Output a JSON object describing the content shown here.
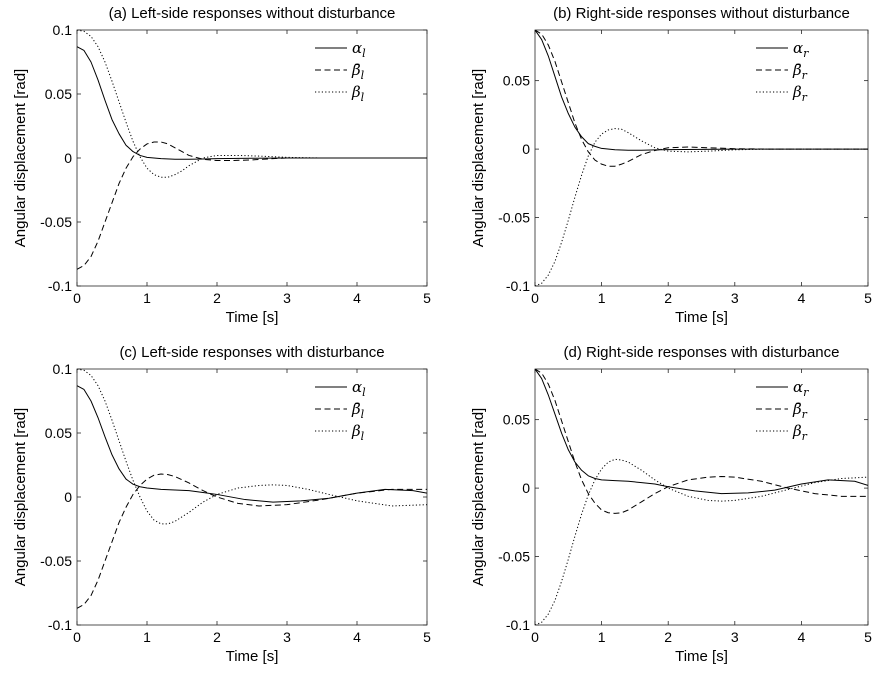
{
  "figure": {
    "line_styles": {
      "alpha": {
        "color": "#000000",
        "dash": "none"
      },
      "beta_bar": {
        "color": "#000000",
        "dash": "dashed"
      },
      "beta": {
        "color": "#000000",
        "dash": "dotted"
      }
    }
  },
  "chart_data": [
    {
      "type": "line",
      "title": "(a) Left-side responses without disturbance",
      "xlabel": "Time [s]",
      "ylabel": "Angular displacement [rad]",
      "xlim": [
        0,
        5
      ],
      "ylim": [
        -0.1,
        0.1
      ],
      "xticks": [
        0,
        1,
        2,
        3,
        4,
        5
      ],
      "yticks": [
        -0.1,
        -0.05,
        0,
        0.05,
        0.1
      ],
      "xtick_labels": [
        "0",
        "1",
        "2",
        "3",
        "4",
        "5"
      ],
      "ytick_labels": [
        "-0.1",
        "-0.05",
        "0",
        "0.05",
        "0.1"
      ],
      "legend_position": "top-right",
      "grid": false,
      "series": [
        {
          "name": "αl",
          "style": "solid",
          "x": [
            0,
            0.1,
            0.2,
            0.3,
            0.4,
            0.5,
            0.6,
            0.7,
            0.8,
            0.9,
            1.0,
            1.2,
            1.4,
            1.6,
            1.8,
            2.0,
            2.5,
            3.0,
            3.5,
            4.0,
            4.5,
            5.0
          ],
          "y": [
            0.087,
            0.084,
            0.075,
            0.061,
            0.045,
            0.03,
            0.019,
            0.01,
            0.005,
            0.002,
            0.0005,
            -0.0005,
            -0.001,
            -0.001,
            -0.0008,
            -0.0005,
            -0.0002,
            0,
            0,
            0,
            0,
            0
          ]
        },
        {
          "name": "β̄l",
          "style": "dashed",
          "x": [
            0,
            0.1,
            0.2,
            0.3,
            0.4,
            0.5,
            0.6,
            0.7,
            0.8,
            0.9,
            1.0,
            1.1,
            1.2,
            1.3,
            1.4,
            1.5,
            1.6,
            1.8,
            2.0,
            2.2,
            2.5,
            2.8,
            3.0,
            3.5,
            4.0,
            4.5,
            5.0
          ],
          "y": [
            -0.087,
            -0.084,
            -0.077,
            -0.065,
            -0.05,
            -0.035,
            -0.02,
            -0.008,
            0.001,
            0.007,
            0.011,
            0.0125,
            0.0125,
            0.011,
            0.008,
            0.005,
            0.002,
            -0.001,
            -0.002,
            -0.002,
            -0.0015,
            -0.0005,
            0,
            0,
            0,
            0,
            0
          ]
        },
        {
          "name": "βl",
          "style": "dotted",
          "x": [
            0,
            0.1,
            0.2,
            0.3,
            0.4,
            0.5,
            0.6,
            0.7,
            0.8,
            0.9,
            1.0,
            1.1,
            1.2,
            1.3,
            1.4,
            1.5,
            1.6,
            1.8,
            2.0,
            2.3,
            2.6,
            3.0,
            3.5,
            4.0,
            4.5,
            5.0
          ],
          "y": [
            0.1,
            0.099,
            0.095,
            0.087,
            0.075,
            0.06,
            0.044,
            0.028,
            0.013,
            0.001,
            -0.008,
            -0.013,
            -0.015,
            -0.015,
            -0.013,
            -0.01,
            -0.006,
            0.0,
            0.002,
            0.002,
            0.0015,
            0.0005,
            0,
            0,
            0,
            0
          ]
        }
      ]
    },
    {
      "type": "line",
      "title": "(b) Right-side responses without disturbance",
      "xlabel": "Time [s]",
      "ylabel": "Angular displacement [rad]",
      "xlim": [
        0,
        5
      ],
      "ylim": [
        -0.1,
        0.087
      ],
      "xticks": [
        0,
        1,
        2,
        3,
        4,
        5
      ],
      "yticks": [
        -0.1,
        -0.05,
        0,
        0.05
      ],
      "xtick_labels": [
        "0",
        "1",
        "2",
        "3",
        "4",
        "5"
      ],
      "ytick_labels": [
        "-0.1",
        "-0.05",
        "0",
        "0.05"
      ],
      "legend_position": "top-right",
      "grid": false,
      "series": [
        {
          "name": "αr",
          "style": "solid",
          "x": [
            0,
            0.1,
            0.2,
            0.3,
            0.4,
            0.5,
            0.6,
            0.7,
            0.8,
            0.9,
            1.0,
            1.2,
            1.4,
            1.6,
            1.8,
            2.0,
            2.5,
            3.0,
            3.5,
            4.0,
            4.5,
            5.0
          ],
          "y": [
            0.087,
            0.08,
            0.068,
            0.053,
            0.038,
            0.026,
            0.016,
            0.009,
            0.004,
            0.002,
            0.0005,
            -0.0005,
            -0.0008,
            -0.0008,
            -0.0006,
            -0.0004,
            -0.0002,
            0,
            0,
            0,
            0,
            0
          ]
        },
        {
          "name": "β̄r",
          "style": "dashed",
          "x": [
            0,
            0.1,
            0.2,
            0.3,
            0.4,
            0.5,
            0.6,
            0.7,
            0.8,
            0.9,
            1.0,
            1.1,
            1.2,
            1.3,
            1.4,
            1.6,
            1.8,
            2.0,
            2.3,
            2.6,
            3.0,
            3.5,
            4.0,
            4.5,
            5.0
          ],
          "y": [
            0.087,
            0.084,
            0.076,
            0.064,
            0.049,
            0.034,
            0.019,
            0.007,
            -0.002,
            -0.008,
            -0.011,
            -0.0125,
            -0.0125,
            -0.011,
            -0.009,
            -0.004,
            -0.001,
            0.001,
            0.0015,
            0.001,
            0.0003,
            0,
            0,
            0,
            0
          ]
        },
        {
          "name": "βr",
          "style": "dotted",
          "x": [
            0,
            0.1,
            0.2,
            0.3,
            0.4,
            0.5,
            0.6,
            0.7,
            0.8,
            0.9,
            1.0,
            1.1,
            1.2,
            1.3,
            1.4,
            1.5,
            1.6,
            1.8,
            2.0,
            2.3,
            2.6,
            3.0,
            3.5,
            4.0,
            4.5,
            5.0
          ],
          "y": [
            -0.1,
            -0.098,
            -0.092,
            -0.082,
            -0.068,
            -0.052,
            -0.035,
            -0.019,
            -0.005,
            0.005,
            0.011,
            0.014,
            0.015,
            0.0145,
            0.012,
            0.009,
            0.006,
            0.001,
            -0.0015,
            -0.002,
            -0.0015,
            -0.0005,
            0,
            0,
            0,
            0
          ]
        }
      ]
    },
    {
      "type": "line",
      "title": "(c) Left-side responses with disturbance",
      "xlabel": "Time [s]",
      "ylabel": "Angular displacement [rad]",
      "xlim": [
        0,
        5
      ],
      "ylim": [
        -0.1,
        0.1
      ],
      "xticks": [
        0,
        1,
        2,
        3,
        4,
        5
      ],
      "yticks": [
        -0.1,
        -0.05,
        0,
        0.05,
        0.1
      ],
      "xtick_labels": [
        "0",
        "1",
        "2",
        "3",
        "4",
        "5"
      ],
      "ytick_labels": [
        "-0.1",
        "-0.05",
        "0",
        "0.05",
        "0.1"
      ],
      "legend_position": "top-right",
      "grid": false,
      "series": [
        {
          "name": "αl",
          "style": "solid",
          "x": [
            0,
            0.1,
            0.2,
            0.3,
            0.4,
            0.5,
            0.6,
            0.7,
            0.8,
            0.9,
            1.0,
            1.2,
            1.4,
            1.6,
            1.8,
            2.0,
            2.4,
            2.8,
            3.2,
            3.6,
            4.0,
            4.4,
            4.8,
            5.0
          ],
          "y": [
            0.087,
            0.084,
            0.075,
            0.062,
            0.047,
            0.033,
            0.022,
            0.014,
            0.01,
            0.008,
            0.007,
            0.006,
            0.0055,
            0.005,
            0.0035,
            0.002,
            -0.002,
            -0.004,
            -0.003,
            -0.001,
            0.003,
            0.006,
            0.005,
            0.003
          ]
        },
        {
          "name": "β̄l",
          "style": "dashed",
          "x": [
            0,
            0.1,
            0.2,
            0.3,
            0.4,
            0.5,
            0.6,
            0.7,
            0.8,
            0.9,
            1.0,
            1.1,
            1.2,
            1.3,
            1.4,
            1.6,
            1.8,
            2.0,
            2.3,
            2.6,
            3.0,
            3.5,
            4.0,
            4.5,
            5.0
          ],
          "y": [
            -0.087,
            -0.084,
            -0.077,
            -0.065,
            -0.05,
            -0.035,
            -0.02,
            -0.008,
            0.002,
            0.009,
            0.014,
            0.017,
            0.018,
            0.0175,
            0.016,
            0.011,
            0.005,
            0.0,
            -0.005,
            -0.007,
            -0.006,
            -0.002,
            0.003,
            0.006,
            0.006
          ]
        },
        {
          "name": "βl",
          "style": "dotted",
          "x": [
            0,
            0.1,
            0.2,
            0.3,
            0.4,
            0.5,
            0.6,
            0.7,
            0.8,
            0.9,
            1.0,
            1.1,
            1.2,
            1.3,
            1.4,
            1.6,
            1.8,
            2.0,
            2.3,
            2.6,
            2.8,
            3.0,
            3.3,
            3.6,
            4.0,
            4.5,
            5.0
          ],
          "y": [
            0.1,
            0.099,
            0.095,
            0.087,
            0.075,
            0.06,
            0.044,
            0.028,
            0.013,
            0.0,
            -0.011,
            -0.018,
            -0.021,
            -0.021,
            -0.019,
            -0.012,
            -0.004,
            0.002,
            0.007,
            0.009,
            0.0095,
            0.009,
            0.006,
            0.002,
            -0.003,
            -0.007,
            -0.006
          ]
        }
      ]
    },
    {
      "type": "line",
      "title": "(d) Right-side responses with disturbance",
      "xlabel": "Time [s]",
      "ylabel": "Angular displacement [rad]",
      "xlim": [
        0,
        5
      ],
      "ylim": [
        -0.1,
        0.087
      ],
      "xticks": [
        0,
        1,
        2,
        3,
        4,
        5
      ],
      "yticks": [
        -0.1,
        -0.05,
        0,
        0.05
      ],
      "xtick_labels": [
        "0",
        "1",
        "2",
        "3",
        "4",
        "5"
      ],
      "ytick_labels": [
        "-0.1",
        "-0.05",
        "0",
        "0.05"
      ],
      "legend_position": "top-right",
      "grid": false,
      "series": [
        {
          "name": "αr",
          "style": "solid",
          "x": [
            0,
            0.1,
            0.2,
            0.3,
            0.4,
            0.5,
            0.6,
            0.7,
            0.8,
            0.9,
            1.0,
            1.2,
            1.4,
            1.6,
            1.8,
            2.0,
            2.4,
            2.8,
            3.2,
            3.6,
            4.0,
            4.4,
            4.8,
            5.0
          ],
          "y": [
            0.087,
            0.08,
            0.068,
            0.054,
            0.04,
            0.028,
            0.019,
            0.013,
            0.009,
            0.007,
            0.006,
            0.0055,
            0.005,
            0.004,
            0.003,
            0.001,
            -0.002,
            -0.004,
            -0.0035,
            -0.0015,
            0.003,
            0.006,
            0.005,
            0.002
          ]
        },
        {
          "name": "β̄r",
          "style": "dashed",
          "x": [
            0,
            0.1,
            0.2,
            0.3,
            0.4,
            0.5,
            0.6,
            0.7,
            0.8,
            0.9,
            1.0,
            1.1,
            1.2,
            1.3,
            1.4,
            1.6,
            1.8,
            2.0,
            2.3,
            2.6,
            2.8,
            3.0,
            3.4,
            3.8,
            4.2,
            4.6,
            5.0
          ],
          "y": [
            0.087,
            0.084,
            0.076,
            0.064,
            0.049,
            0.034,
            0.019,
            0.006,
            -0.004,
            -0.011,
            -0.016,
            -0.018,
            -0.0185,
            -0.018,
            -0.016,
            -0.01,
            -0.004,
            0.001,
            0.006,
            0.008,
            0.0085,
            0.008,
            0.005,
            0.0,
            -0.004,
            -0.006,
            -0.006
          ]
        },
        {
          "name": "βr",
          "style": "dotted",
          "x": [
            0,
            0.1,
            0.2,
            0.3,
            0.4,
            0.5,
            0.6,
            0.7,
            0.8,
            0.9,
            1.0,
            1.1,
            1.2,
            1.3,
            1.4,
            1.6,
            1.8,
            2.0,
            2.3,
            2.6,
            2.8,
            3.0,
            3.4,
            3.8,
            4.2,
            4.6,
            5.0
          ],
          "y": [
            -0.1,
            -0.098,
            -0.092,
            -0.082,
            -0.068,
            -0.052,
            -0.035,
            -0.019,
            -0.005,
            0.006,
            0.014,
            0.019,
            0.021,
            0.0205,
            0.019,
            0.013,
            0.006,
            0.0,
            -0.006,
            -0.009,
            -0.0095,
            -0.009,
            -0.006,
            -0.001,
            0.004,
            0.007,
            0.008
          ]
        }
      ]
    }
  ]
}
